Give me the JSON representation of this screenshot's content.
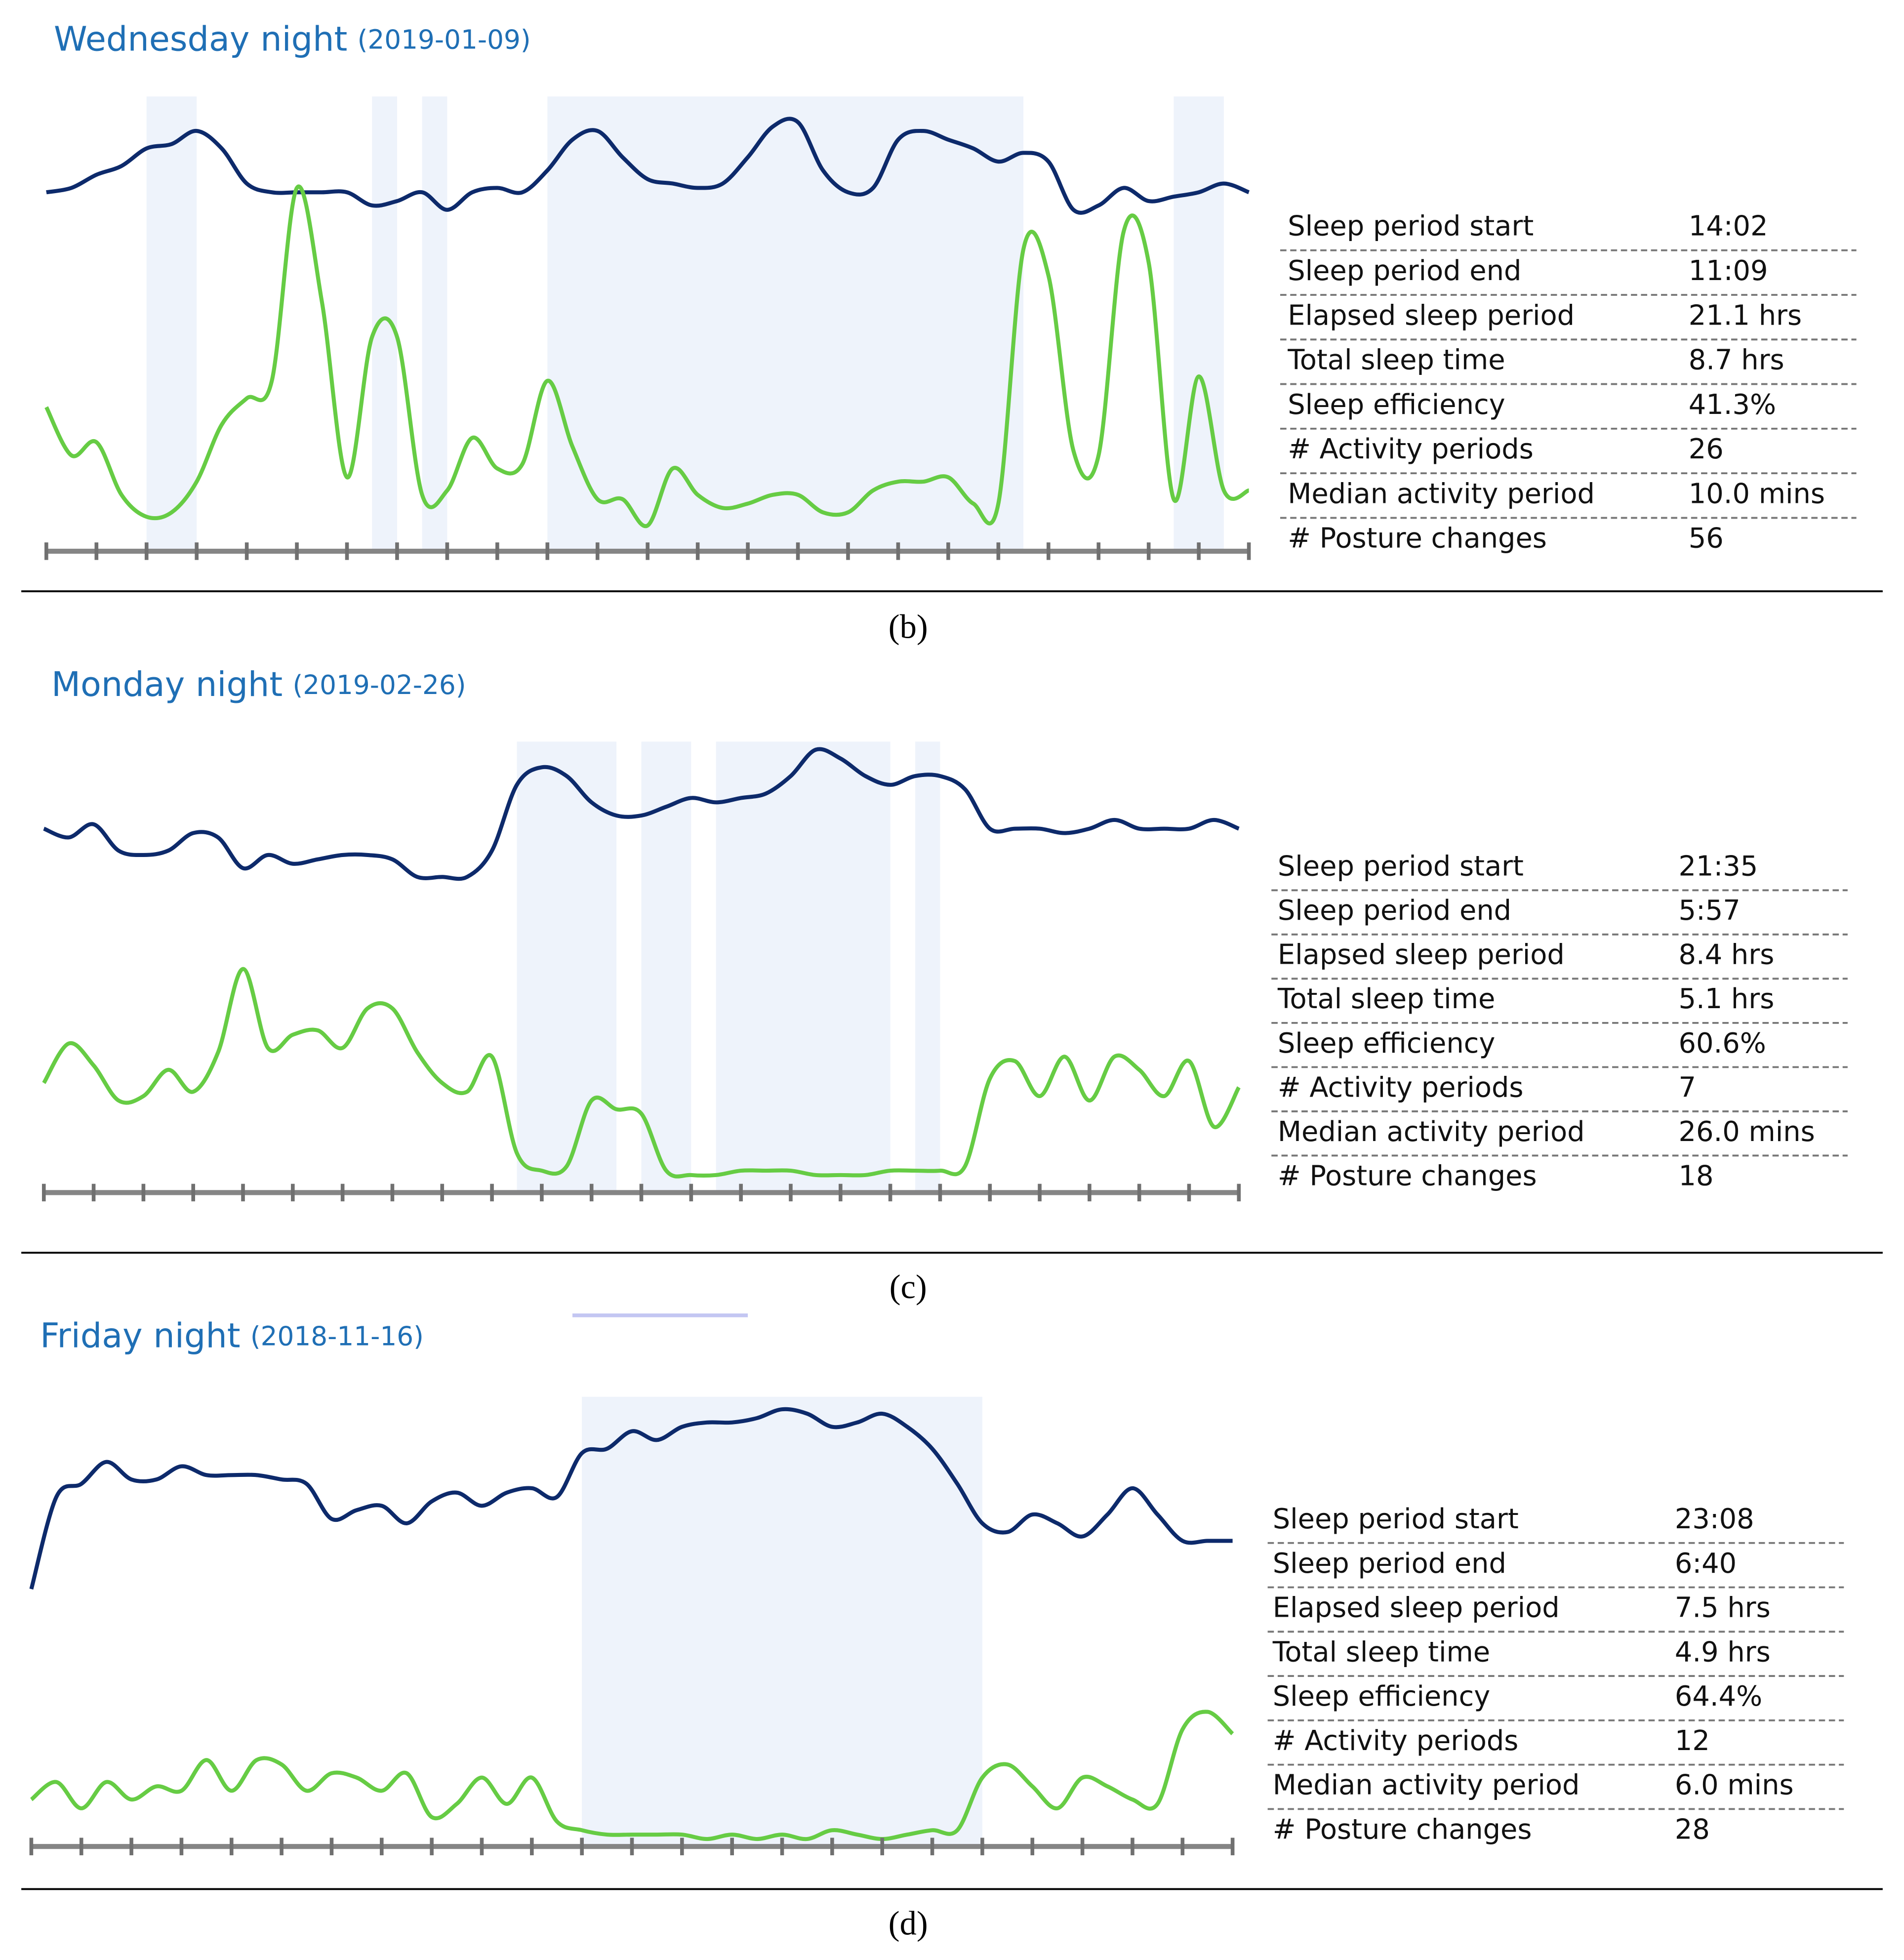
{
  "chart_data": [
    {
      "type": "line",
      "title": "Wednesday night",
      "subtitle": "(2019-01-09)",
      "caption": "(b)",
      "x": [
        0,
        0.5,
        1,
        1.5,
        2,
        2.5,
        3,
        3.5,
        4,
        4.5,
        5,
        5.5,
        6,
        6.5,
        7,
        7.5,
        8,
        8.5,
        9,
        9.5,
        10,
        10.5,
        11,
        11.5,
        12,
        12.5,
        13,
        13.5,
        14,
        14.5,
        15,
        15.5,
        16,
        16.5,
        17,
        17.5,
        18,
        18.5,
        19,
        19.5,
        20,
        20.5,
        21,
        21.5,
        22,
        22.5,
        23,
        23.5,
        24
      ],
      "xlim": [
        0,
        24
      ],
      "xticks": [
        0,
        1,
        2,
        3,
        4,
        5,
        6,
        7,
        8,
        9,
        10,
        11,
        12,
        13,
        14,
        15,
        16,
        17,
        18,
        19,
        20,
        21,
        22,
        23,
        24
      ],
      "ylim": [
        0,
        100
      ],
      "shaded_periods": [
        [
          2,
          3
        ],
        [
          6.5,
          7
        ],
        [
          7.5,
          8
        ],
        [
          10,
          19.5
        ],
        [
          22.5,
          23.5
        ]
      ],
      "series": [
        {
          "color": "#0d2a6b",
          "values": [
            79,
            80,
            83,
            85,
            89,
            90,
            93,
            89,
            81,
            79,
            79,
            79,
            79,
            76,
            77,
            79,
            75,
            79,
            80,
            79,
            84,
            91,
            93,
            87,
            82,
            81,
            80,
            81,
            87,
            94,
            95,
            84,
            79,
            80,
            91,
            93,
            91,
            89,
            86,
            88,
            86,
            75,
            76,
            80,
            77,
            78,
            79,
            81,
            79
          ]
        },
        {
          "color": "#66cc44",
          "values": [
            30,
            19,
            22,
            10,
            5,
            6,
            13,
            26,
            32,
            36,
            80,
            54,
            14,
            46,
            46,
            10,
            11,
            23,
            16,
            17,
            36,
            21,
            9,
            9,
            3,
            16,
            10,
            7,
            8,
            10,
            10,
            6,
            6,
            11,
            13,
            13,
            14,
            8,
            8,
            66,
            60,
            20,
            19,
            70,
            63,
            9,
            37,
            11,
            11
          ]
        }
      ],
      "stats": [
        {
          "label": "Sleep period start",
          "value": "14:02"
        },
        {
          "label": "Sleep period end",
          "value": "11:09"
        },
        {
          "label": "Elapsed sleep period",
          "value": "21.1 hrs"
        },
        {
          "label": "Total sleep time",
          "value": "8.7 hrs"
        },
        {
          "label": "Sleep efficiency",
          "value": "41.3%"
        },
        {
          "label": "# Activity periods",
          "value": "26"
        },
        {
          "label": "Median activity period",
          "value": "10.0 mins"
        },
        {
          "label": "# Posture changes",
          "value": "56"
        }
      ]
    },
    {
      "type": "line",
      "title": "Monday night",
      "subtitle": "(2019-02-26)",
      "caption": "(c)",
      "x": [
        0,
        0.5,
        1,
        1.5,
        2,
        2.5,
        3,
        3.5,
        4,
        4.5,
        5,
        5.5,
        6,
        6.5,
        7,
        7.5,
        8,
        8.5,
        9,
        9.5,
        10,
        10.5,
        11,
        11.5,
        12,
        12.5,
        13,
        13.5,
        14,
        14.5,
        15,
        15.5,
        16,
        16.5,
        17,
        17.5,
        18,
        18.5,
        19,
        19.5,
        20,
        20.5,
        21,
        21.5,
        22,
        22.5,
        23,
        23.5,
        24
      ],
      "xlim": [
        0,
        24
      ],
      "xticks": [
        0,
        1,
        2,
        3,
        4,
        5,
        6,
        7,
        8,
        9,
        10,
        11,
        12,
        13,
        14,
        15,
        16,
        17,
        18,
        19,
        20,
        21,
        22,
        23,
        24
      ],
      "ylim": [
        0,
        100
      ],
      "shaded_periods": [
        [
          9.5,
          11.5
        ],
        [
          12,
          13
        ],
        [
          13.5,
          17
        ],
        [
          17.5,
          18
        ]
      ],
      "series": [
        {
          "color": "#0d2a6b",
          "values": [
            81,
            79,
            82,
            76,
            75,
            76,
            80,
            79,
            72,
            75,
            73,
            74,
            75,
            75,
            74,
            70,
            70,
            70,
            76,
            91,
            95,
            93,
            87,
            84,
            84,
            86,
            88,
            87,
            88,
            89,
            93,
            99,
            97,
            93,
            91,
            93,
            93,
            90,
            81,
            81,
            81,
            80,
            81,
            83,
            81,
            81,
            81,
            83,
            81
          ]
        },
        {
          "color": "#66cc44",
          "values": [
            23,
            32,
            27,
            19,
            20,
            26,
            21,
            30,
            49,
            31,
            34,
            35,
            31,
            40,
            40,
            30,
            23,
            21,
            29,
            7,
            3,
            4,
            19,
            17,
            16,
            3,
            2,
            2,
            3,
            3,
            3,
            2,
            2,
            2,
            3,
            3,
            3,
            4,
            24,
            28,
            20,
            29,
            19,
            29,
            26,
            20,
            28,
            13,
            22
          ]
        }
      ],
      "stats": [
        {
          "label": "Sleep period start",
          "value": "21:35"
        },
        {
          "label": "Sleep period end",
          "value": "5:57"
        },
        {
          "label": "Elapsed sleep period",
          "value": "8.4 hrs"
        },
        {
          "label": "Total sleep time",
          "value": "5.1 hrs"
        },
        {
          "label": "Sleep efficiency",
          "value": "60.6%"
        },
        {
          "label": "# Activity periods",
          "value": "7"
        },
        {
          "label": "Median activity period",
          "value": "26.0 mins"
        },
        {
          "label": "# Posture changes",
          "value": "18"
        }
      ]
    },
    {
      "type": "line",
      "title": "Friday night",
      "subtitle": "(2018-11-16)",
      "caption": "(d)",
      "x": [
        0,
        0.5,
        1,
        1.5,
        2,
        2.5,
        3,
        3.5,
        4,
        4.5,
        5,
        5.5,
        6,
        6.5,
        7,
        7.5,
        8,
        8.5,
        9,
        9.5,
        10,
        10.5,
        11,
        11.5,
        12,
        12.5,
        13,
        13.5,
        14,
        14.5,
        15,
        15.5,
        16,
        16.5,
        17,
        17.5,
        18,
        18.5,
        19,
        19.5,
        20,
        20.5,
        21,
        21.5,
        22,
        22.5,
        23,
        23.5,
        24
      ],
      "xlim": [
        0,
        24
      ],
      "xticks": [
        0,
        1,
        2,
        3,
        4,
        5,
        6,
        7,
        8,
        9,
        10,
        11,
        12,
        13,
        14,
        15,
        16,
        17,
        18,
        19,
        20,
        21,
        22,
        23,
        24
      ],
      "ylim": [
        0,
        100
      ],
      "shaded_periods": [
        [
          11,
          19
        ]
      ],
      "series": [
        {
          "color": "#0d2a6b",
          "values": [
            57,
            78,
            81,
            86,
            82,
            82,
            85,
            83,
            83,
            83,
            82,
            81,
            73,
            75,
            76,
            72,
            77,
            79,
            76,
            79,
            80,
            78,
            88,
            89,
            93,
            91,
            94,
            95,
            95,
            96,
            98,
            97,
            94,
            95,
            97,
            94,
            89,
            81,
            72,
            70,
            74,
            72,
            69,
            74,
            80,
            74,
            68,
            68,
            68
          ]
        },
        {
          "color": "#66cc44",
          "values": [
            9,
            13,
            7,
            13,
            9,
            12,
            11,
            18,
            11,
            18,
            17,
            11,
            15,
            14,
            11,
            15,
            5,
            8,
            14,
            8,
            14,
            4,
            2,
            1,
            1,
            1,
            1,
            0,
            1,
            0,
            1,
            0,
            2,
            1,
            0,
            1,
            2,
            2,
            14,
            17,
            12,
            7,
            14,
            12,
            9,
            8,
            25,
            29,
            24
          ]
        }
      ],
      "stats": [
        {
          "label": "Sleep period start",
          "value": "23:08"
        },
        {
          "label": "Sleep period end",
          "value": "6:40"
        },
        {
          "label": "Elapsed sleep period",
          "value": "7.5 hrs"
        },
        {
          "label": "Total sleep time",
          "value": "4.9 hrs"
        },
        {
          "label": "Sleep efficiency",
          "value": "64.4%"
        },
        {
          "label": "# Activity periods",
          "value": "12"
        },
        {
          "label": "Median activity period",
          "value": "6.0 mins"
        },
        {
          "label": "# Posture changes",
          "value": "28"
        }
      ]
    }
  ]
}
